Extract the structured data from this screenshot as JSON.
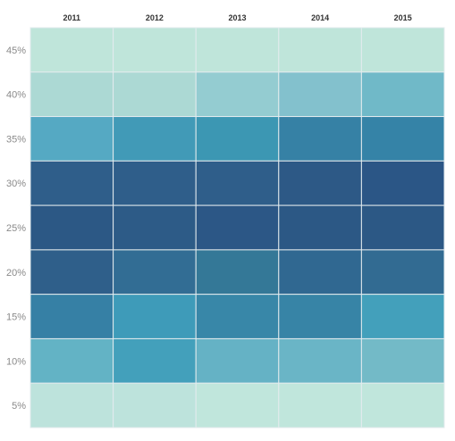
{
  "chart_data": {
    "type": "heatmap",
    "title": "",
    "xlabel": "",
    "ylabel": "",
    "x_categories": [
      "2011",
      "2012",
      "2013",
      "2014",
      "2015"
    ],
    "y_categories": [
      "45%",
      "40%",
      "35%",
      "30%",
      "25%",
      "20%",
      "15%",
      "10%",
      "5%"
    ],
    "cell_colors": [
      [
        "#bfe5da",
        "#bfe5da",
        "#bfe5da",
        "#bfe5da",
        "#bfe5da"
      ],
      [
        "#acd9d4",
        "#acd9d4",
        "#94ccd1",
        "#83c1cd",
        "#70b9c8"
      ],
      [
        "#55a9c3",
        "#419ab7",
        "#3c97b3",
        "#3681a5",
        "#3583a7"
      ],
      [
        "#2f5e8a",
        "#2f5e8a",
        "#2f5e8a",
        "#2d5986",
        "#2b5686"
      ],
      [
        "#2c5885",
        "#2d5b87",
        "#2c5786",
        "#2c5885",
        "#2c5885"
      ],
      [
        "#2f5f8a",
        "#326d94",
        "#347897",
        "#306891",
        "#326b92"
      ],
      [
        "#3680a5",
        "#3e9bb9",
        "#3887a8",
        "#3784a6",
        "#43a0bb"
      ],
      [
        "#63b3c5",
        "#43a0bb",
        "#65b2c5",
        "#6ab5c6",
        "#73bac7"
      ],
      [
        "#bde3dc",
        "#bde3dc",
        "#c0e6dc",
        "#c0e6dc",
        "#c0e6dc"
      ]
    ],
    "grid": true,
    "legend": false
  }
}
